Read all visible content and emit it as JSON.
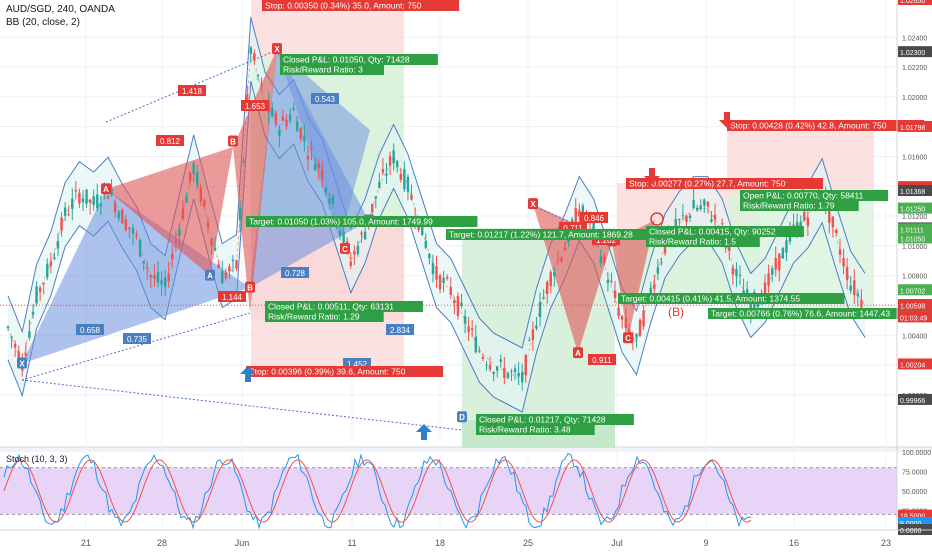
{
  "header": {
    "symbol": "AUD/SGD, 240, OANDA",
    "indicator": "BB (20, close, 2)"
  },
  "chart_data": {
    "type": "candlestick",
    "symbol": "AUD/SGD",
    "timeframe": "240",
    "broker": "OANDA",
    "price_ylim": [
      0.9965,
      1.0265
    ],
    "price_ticks": [
      "1.02400",
      "1.02200",
      "1.02000",
      "1.01800",
      "1.01600",
      "1.01400",
      "1.01200",
      "1.01000",
      "1.00800",
      "1.00600",
      "1.00400",
      "1.00200",
      "1.00000"
    ],
    "price_tags": [
      {
        "label": "1.02650",
        "value": 1.0265,
        "color": "#e53935"
      },
      {
        "label": "1.02300",
        "value": 1.023,
        "color": "#4a4a4a"
      },
      {
        "label": "1.01798",
        "value": 1.01798,
        "color": "#e53935"
      },
      {
        "label": "1.01394",
        "value": 1.01394,
        "color": "#e53935"
      },
      {
        "label": "1.01368",
        "value": 1.01368,
        "color": "#4a4a4a"
      },
      {
        "label": "1.01250",
        "value": 1.0125,
        "color": "#4caf50"
      },
      {
        "label": "1.01117",
        "value": 1.01117,
        "color": "#4a4a4a"
      },
      {
        "label": "1.01111",
        "value": 1.01111,
        "color": "#4caf50"
      },
      {
        "label": "1.01050",
        "value": 1.0105,
        "color": "#4caf50"
      },
      {
        "label": "1.00702",
        "value": 1.00702,
        "color": "#4caf50"
      },
      {
        "label": "1.00602",
        "value": 1.00602,
        "color": "#4a4a4a"
      },
      {
        "label": "1.00598",
        "value": 1.00598,
        "color": "#e53935"
      },
      {
        "label": "01:03:49",
        "value": 1.0052,
        "color": "#e53935"
      },
      {
        "label": "1.00204",
        "value": 1.00204,
        "color": "#e53935"
      },
      {
        "label": "0.99966",
        "value": 0.99966,
        "color": "#4a4a4a"
      }
    ],
    "x_ticks": [
      "21",
      "28",
      "Jun",
      "11",
      "18",
      "25",
      "Jul",
      "9",
      "16",
      "23"
    ],
    "price_path": [
      1.0045,
      1.0021,
      1.0066,
      1.0088,
      1.0121,
      1.0135,
      1.0128,
      1.0138,
      1.012,
      1.0105,
      1.008,
      1.0072,
      1.0113,
      1.0153,
      1.0116,
      1.008,
      1.0086,
      1.0232,
      1.0195,
      1.018,
      1.019,
      1.0165,
      1.015,
      1.012,
      1.009,
      1.011,
      1.014,
      1.016,
      1.014,
      1.011,
      1.008,
      1.007,
      1.005,
      1.003,
      1.002,
      1.0015,
      1.001,
      1.005,
      1.008,
      1.01,
      1.0125,
      1.011,
      1.008,
      1.005,
      1.0035,
      1.007,
      1.01,
      1.0115,
      1.0125,
      1.0125,
      1.011,
      1.008,
      1.006,
      1.007,
      1.009,
      1.011,
      1.012,
      1.0137,
      1.0105,
      1.0075,
      1.006
    ],
    "harmonic_labels": [
      {
        "label": "X",
        "price": 1.0021
      },
      {
        "label": "A",
        "price": 1.0138
      },
      {
        "label": "B",
        "price": 1.0072
      },
      {
        "label": "C",
        "price": 1.0117
      },
      {
        "label": "D",
        "price": 1.0232
      },
      {
        "label": "X",
        "price": 1.0232
      },
      {
        "label": "A",
        "price": 1.008
      },
      {
        "label": "B",
        "price": 1.017
      },
      {
        "label": "C",
        "price": 1.0098
      },
      {
        "label": "D",
        "price": 0.9985
      },
      {
        "label": "X",
        "price": 1.0128
      },
      {
        "label": "A",
        "price": 1.0028
      },
      {
        "label": "B",
        "price": 1.0103
      },
      {
        "label": "C",
        "price": 1.0038
      }
    ],
    "ratios": [
      "1.418",
      "0.812",
      "1.653",
      "0.728",
      "1.144",
      "0.658",
      "0.735",
      "2.834",
      "1.452",
      "0.543",
      "0.846",
      "0.711",
      "1.202",
      "0.911"
    ],
    "annotations": [
      "Closed P&L: 0.01050, Qty: 71428",
      "Risk/Reward Ratio: 3",
      "Stop: 0.00396 (0.39%) 39.6, Amount: 750",
      "Target: 0.01050 (1.03%) 105.0, Amount: 1749.99",
      "Closed P&L: 0.00511, Qty: 63131",
      "Risk/Reward Ratio: 1.29",
      "Target: 0.01217 (1.22%) 121.7, Amount: 1869.28",
      "Closed P&L: 0.01217, Qty: 71428",
      "Risk/Reward Ratio: 3.48",
      "Stop: 0.00277 (0.27%) 27.7, Amount: 750",
      "Closed P&L: 0.00415, Qty: 90252",
      "Risk/Reward Ratio: 1.5",
      "Target: 0.00415 (0.41%) 41.5, Amount: 1374.55",
      "Open P&L: 0.00770, Qty: 58411",
      "Risk/Reward Ratio: 1.79",
      "Target: 0.00766 (0.76%) 76.6, Amount: 1447.43",
      "Stop: 0.00428 (0.42%) 42.8, Amount: 750",
      "Stop: 0.00350 (0.34%) 35.0, Amount: 750"
    ],
    "wave_labels": [
      "(B)"
    ],
    "stoch": {
      "name": "Stoch (10, 3, 3)",
      "ylim": [
        0,
        100
      ],
      "ticks": [
        "100.0000",
        "75.0000",
        "50.0000",
        "25.0000"
      ],
      "tags": [
        {
          "label": "18.5000",
          "value": 18.5,
          "color": "#e53935"
        },
        {
          "label": "9.0000",
          "value": 9,
          "color": "#2196f3"
        },
        {
          "label": "0.0000",
          "value": 0,
          "color": "#4a4a4a"
        }
      ],
      "band": [
        20,
        80
      ]
    }
  }
}
